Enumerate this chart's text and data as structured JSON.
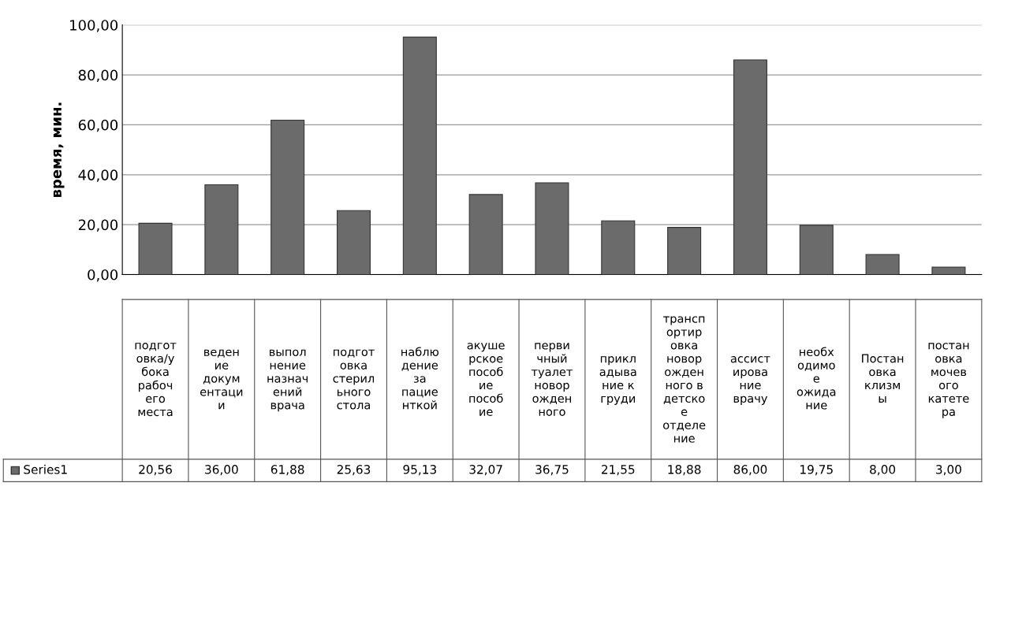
{
  "chart_data": {
    "type": "bar",
    "ylabel": "время, мин.",
    "categories": [
      "подгот\nовка/у\nбока\nрабоч\nего\nместа",
      "веден\nие\nдокум\nентаци\nи",
      "выпол\nнение\nназнач\nений\nврача",
      "подгот\nовка\nстерил\nьного\nстола",
      "наблю\nдение\nза\nпацие\nнткой",
      "акуше\nрское\nпособ\nие\nпособ\nие",
      "перви\nчный\nтуалет\nновор\nожден\nного",
      "прикл\nадыва\nние к\nгруди",
      "трансп\nортир\nовка\nновор\nожден\nного в\nдетско\nе\nотделе\nние",
      "ассист\nирова\nние\nврачу",
      "необх\nодимо\nе\nожида\nние",
      "Постан\nовка\nклизм\nы",
      "постан\nовка\nмочев\nого\nкатете\nра"
    ],
    "series": [
      {
        "name": "Series1",
        "color": "#6b6b6b",
        "values": [
          20.56,
          36.0,
          61.88,
          25.63,
          95.13,
          32.07,
          36.75,
          21.55,
          18.88,
          86.0,
          19.75,
          8.0,
          3.0
        ],
        "value_labels": [
          "20,56",
          "36,00",
          "61,88",
          "25,63",
          "95,13",
          "32,07",
          "36,75",
          "21,55",
          "18,88",
          "86,00",
          "19,75",
          "8,00",
          "3,00"
        ]
      }
    ],
    "ylim": [
      0,
      100
    ],
    "yticks": [
      {
        "value": 0,
        "label": "0,00"
      },
      {
        "value": 20,
        "label": "20,00"
      },
      {
        "value": 40,
        "label": "40,00"
      },
      {
        "value": 60,
        "label": "60,00"
      },
      {
        "value": 80,
        "label": "80,00"
      },
      {
        "value": 100,
        "label": "100,00"
      }
    ],
    "grid": "y"
  }
}
